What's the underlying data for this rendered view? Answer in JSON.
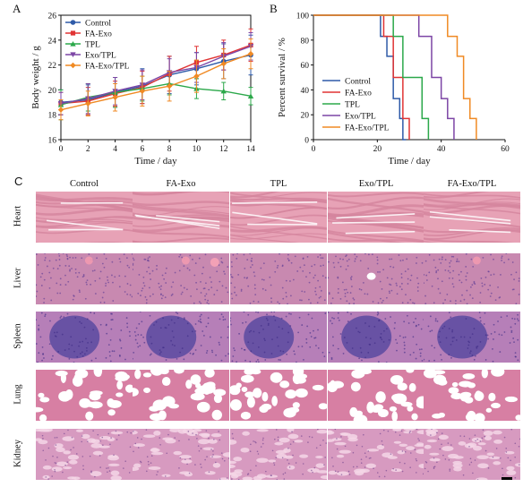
{
  "panels": {
    "a": "A",
    "b": "B",
    "c": "C"
  },
  "chart_data": [
    {
      "type": "line",
      "xlabel": "Time / day",
      "ylabel": "Body weight / g",
      "xlim": [
        0,
        14
      ],
      "ylim": [
        16,
        26
      ],
      "xticks": [
        "0",
        "2",
        "4",
        "6",
        "8",
        "10",
        "12",
        "14"
      ],
      "yticks": [
        "16",
        "18",
        "20",
        "22",
        "24",
        "26"
      ],
      "legend_position": "top-left",
      "x": [
        0,
        2,
        4,
        6,
        8,
        10,
        12,
        14
      ],
      "series": [
        {
          "name": "Control",
          "color": "#2e5aa8",
          "values": [
            19.0,
            19.2,
            19.8,
            20.3,
            21.2,
            21.7,
            22.3,
            22.8
          ],
          "errors": [
            1.0,
            1.2,
            1.2,
            1.4,
            1.5,
            1.3,
            1.4,
            1.6
          ]
        },
        {
          "name": "FA-Exo",
          "color": "#e03434",
          "values": [
            18.9,
            19.1,
            19.7,
            20.2,
            21.3,
            22.2,
            22.8,
            23.6
          ],
          "errors": [
            0.9,
            1.1,
            1.0,
            1.3,
            1.4,
            1.3,
            1.2,
            1.3
          ]
        },
        {
          "name": "TPL",
          "color": "#2ba84a",
          "values": [
            18.8,
            19.4,
            19.8,
            20.1,
            20.5,
            20.1,
            19.9,
            19.5
          ],
          "errors": [
            1.2,
            1.1,
            1.2,
            1.0,
            0.9,
            0.8,
            0.7,
            0.7
          ]
        },
        {
          "name": "Exo/TPL",
          "color": "#7c45a5",
          "values": [
            18.9,
            19.3,
            19.9,
            20.4,
            21.4,
            21.8,
            22.7,
            23.5
          ],
          "errors": [
            0.9,
            1.2,
            1.1,
            1.2,
            1.1,
            1.2,
            1.1,
            1.1
          ]
        },
        {
          "name": "FA-Exo/TPL",
          "color": "#f08a24",
          "values": [
            18.4,
            18.9,
            19.4,
            19.9,
            20.3,
            21.1,
            22.1,
            22.9
          ],
          "errors": [
            0.8,
            1.0,
            1.1,
            1.2,
            1.2,
            1.3,
            1.2,
            1.2
          ]
        }
      ]
    },
    {
      "type": "line",
      "subtype": "survival-step",
      "xlabel": "Time / day",
      "ylabel": "Percent survival / %",
      "xlim": [
        0,
        60
      ],
      "ylim": [
        0,
        100
      ],
      "xticks": [
        "0",
        "20",
        "40",
        "60"
      ],
      "yticks": [
        "0",
        "20",
        "40",
        "60",
        "80",
        "100"
      ],
      "legend_position": "bottom-right",
      "series": [
        {
          "name": "Control",
          "color": "#2e5aa8",
          "x": [
            0,
            21,
            21,
            23,
            23,
            25,
            25,
            27,
            27,
            28,
            28,
            29,
            29
          ],
          "values": [
            100,
            100,
            83,
            83,
            67,
            67,
            33,
            33,
            17,
            17,
            0,
            0,
            0
          ]
        },
        {
          "name": "FA-Exo",
          "color": "#e03434",
          "x": [
            0,
            22,
            22,
            25,
            25,
            28,
            28,
            30,
            30
          ],
          "values": [
            100,
            100,
            83,
            83,
            50,
            50,
            17,
            17,
            0
          ]
        },
        {
          "name": "TPL",
          "color": "#2ba84a",
          "x": [
            0,
            25,
            25,
            28,
            28,
            34,
            34,
            36,
            36
          ],
          "values": [
            100,
            100,
            83,
            83,
            50,
            50,
            17,
            17,
            0
          ]
        },
        {
          "name": "Exo/TPL",
          "color": "#7c45a5",
          "x": [
            0,
            33,
            33,
            37,
            37,
            40,
            40,
            42,
            42,
            44,
            44
          ],
          "values": [
            100,
            100,
            83,
            83,
            50,
            50,
            33,
            33,
            17,
            17,
            0
          ]
        },
        {
          "name": "FA-Exo/TPL",
          "color": "#f08a24",
          "x": [
            0,
            42,
            42,
            45,
            45,
            47,
            47,
            49,
            49,
            51,
            51
          ],
          "values": [
            100,
            100,
            83,
            83,
            67,
            67,
            33,
            33,
            17,
            17,
            0
          ]
        }
      ]
    }
  ],
  "histology": {
    "columns": [
      "Control",
      "FA-Exo",
      "TPL",
      "Exo/TPL",
      "FA-Exo/TPL"
    ],
    "rows": [
      "Heart",
      "Liver",
      "Spleen",
      "Lung",
      "Kidney"
    ]
  }
}
